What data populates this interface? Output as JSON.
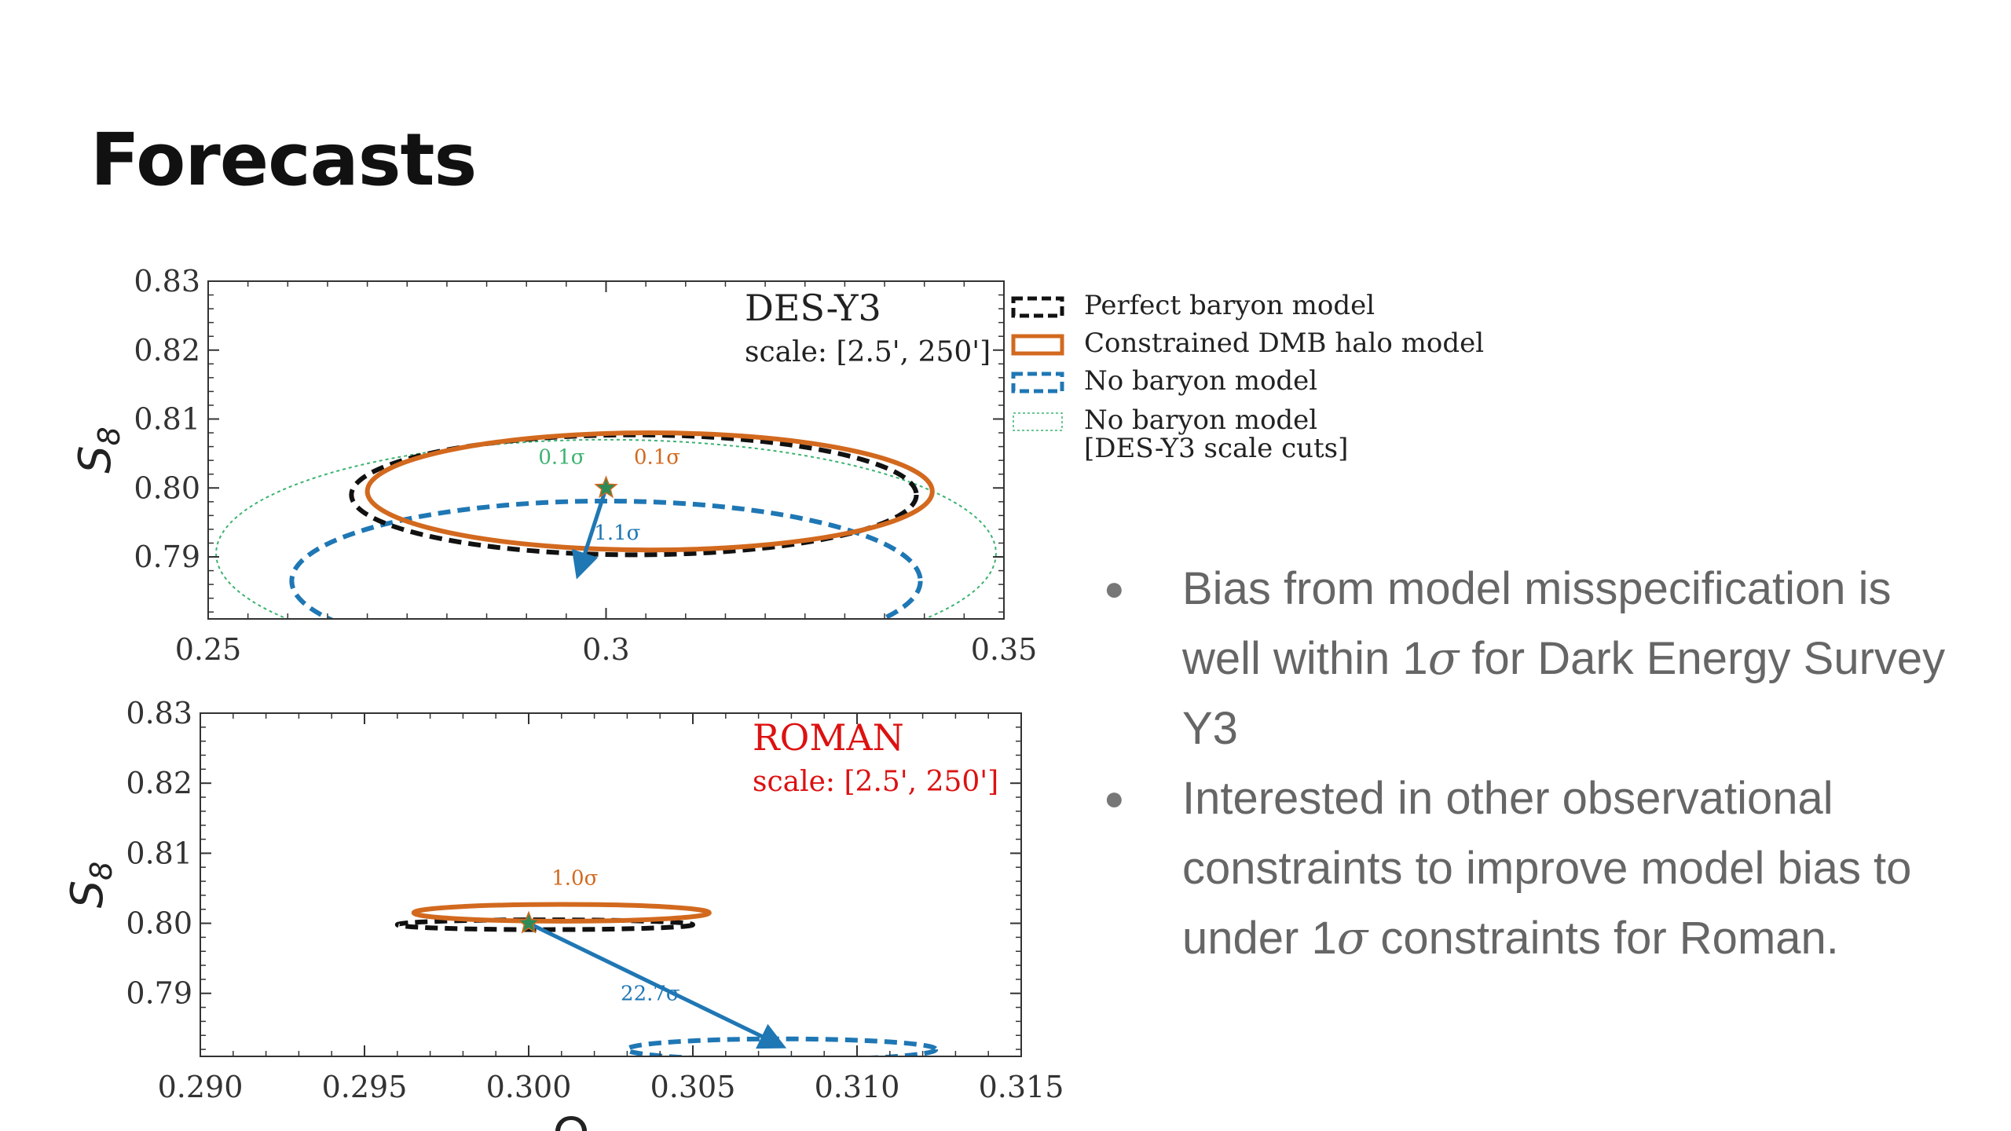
{
  "slide": {
    "title": "Forecasts",
    "bullets": [
      {
        "parts": [
          "Bias from model misspecification is well within 1",
          "σ",
          " for Dark Energy Survey Y3"
        ]
      },
      {
        "parts": [
          "Interested in other observational constraints to improve model bias to under 1",
          "σ",
          " constraints for Roman."
        ]
      }
    ]
  },
  "colors": {
    "perfect": "#111111",
    "constrained": "#d2691e",
    "none": "#1f77b4",
    "cuts": "#3cb371",
    "roman": "#dd1111"
  },
  "chart_data": [
    {
      "type": "scatter",
      "title": "DES-Y3",
      "subtitle": "scale: [2.5', 250']",
      "xlim": [
        0.25,
        0.35
      ],
      "ylim": [
        0.781,
        0.83
      ],
      "xticks": [
        "0.25",
        "0.3",
        "0.35"
      ],
      "yticks": [
        "0.79",
        "0.80",
        "0.81",
        "0.82",
        "0.83"
      ],
      "ylabel": "S8",
      "legend_position": "outside-right",
      "legend": [
        {
          "label": "Perfect baryon model",
          "key": "perfect",
          "style": "dashed"
        },
        {
          "label": "Constrained DMB halo model",
          "key": "constrained",
          "style": "solid"
        },
        {
          "label": "No baryon model",
          "key": "none",
          "style": "dashed"
        },
        {
          "label": "No baryon model",
          "label2": "[DES-Y3 scale cuts]",
          "key": "cuts",
          "style": "dotted"
        }
      ],
      "ellipses": [
        {
          "key": "cuts",
          "style": "dotted",
          "cx": 0.3,
          "cy": 0.7905,
          "rx": 0.049,
          "ry": 0.0165
        },
        {
          "key": "none",
          "style": "dashed",
          "cx": 0.3,
          "cy": 0.7865,
          "rx": 0.0395,
          "ry": 0.0116
        },
        {
          "key": "perfect",
          "style": "dashed",
          "cx": 0.3035,
          "cy": 0.799,
          "rx": 0.0355,
          "ry": 0.0087
        },
        {
          "key": "constrained",
          "style": "solid",
          "cx": 0.3055,
          "cy": 0.7995,
          "rx": 0.0355,
          "ry": 0.0085
        }
      ],
      "arrow": {
        "from": [
          0.3,
          0.8
        ],
        "to": [
          0.2965,
          0.7875
        ],
        "key": "none"
      },
      "labels": [
        {
          "text": "0.1σ",
          "x": 0.2915,
          "y": 0.8035,
          "key": "cuts"
        },
        {
          "text": "0.1σ",
          "x": 0.3035,
          "y": 0.8035,
          "key": "constrained"
        },
        {
          "text": "1.1σ",
          "x": 0.2985,
          "y": 0.7925,
          "key": "none"
        }
      ],
      "fiducial": {
        "x": 0.3,
        "y": 0.8
      }
    },
    {
      "type": "scatter",
      "title": "ROMAN",
      "subtitle": "scale: [2.5', 250']",
      "xlim": [
        0.29,
        0.315
      ],
      "ylim": [
        0.781,
        0.83
      ],
      "xticks": [
        "0.290",
        "0.295",
        "0.300",
        "0.305",
        "0.310",
        "0.315"
      ],
      "yticks": [
        "0.79",
        "0.80",
        "0.81",
        "0.82",
        "0.83"
      ],
      "xlabel": "Ωm",
      "ylabel": "S8",
      "ellipses": [
        {
          "key": "perfect",
          "style": "dashed",
          "cx": 0.3005,
          "cy": 0.7998,
          "rx": 0.0045,
          "ry": 0.0007
        },
        {
          "key": "constrained",
          "style": "solid",
          "cx": 0.301,
          "cy": 0.8015,
          "rx": 0.0045,
          "ry": 0.0012
        },
        {
          "key": "none",
          "style": "dashed",
          "cx": 0.3077,
          "cy": 0.782,
          "rx": 0.0047,
          "ry": 0.0015
        }
      ],
      "arrow": {
        "from": [
          0.3,
          0.8
        ],
        "to": [
          0.3077,
          0.7825
        ],
        "key": "none"
      },
      "labels": [
        {
          "text": "1.0σ",
          "x": 0.3007,
          "y": 0.8055,
          "key": "constrained"
        },
        {
          "text": "22.7σ",
          "x": 0.3028,
          "y": 0.789,
          "key": "none"
        }
      ],
      "fiducial": {
        "x": 0.3,
        "y": 0.8
      }
    }
  ]
}
